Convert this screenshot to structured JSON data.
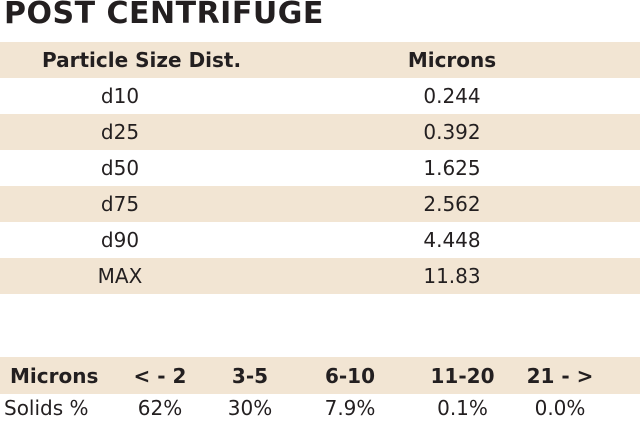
{
  "header": {
    "title": "POST CENTRIFUGE"
  },
  "size_table": {
    "columns": [
      "Particle Size Dist.",
      "Microns"
    ],
    "rows": [
      [
        "d10",
        "0.244"
      ],
      [
        "d25",
        "0.392"
      ],
      [
        "d50",
        "1.625"
      ],
      [
        "d75",
        "2.562"
      ],
      [
        "d90",
        "4.448"
      ],
      [
        "MAX",
        "11.83"
      ]
    ]
  },
  "solids_table": {
    "columns": [
      "Microns",
      "< - 2",
      "3-5",
      "6-10",
      "11-20",
      "21 - >"
    ],
    "rows": [
      [
        "Solids %",
        "62%",
        "30%",
        "7.9%",
        "0.1%",
        "0.0%"
      ]
    ]
  }
}
